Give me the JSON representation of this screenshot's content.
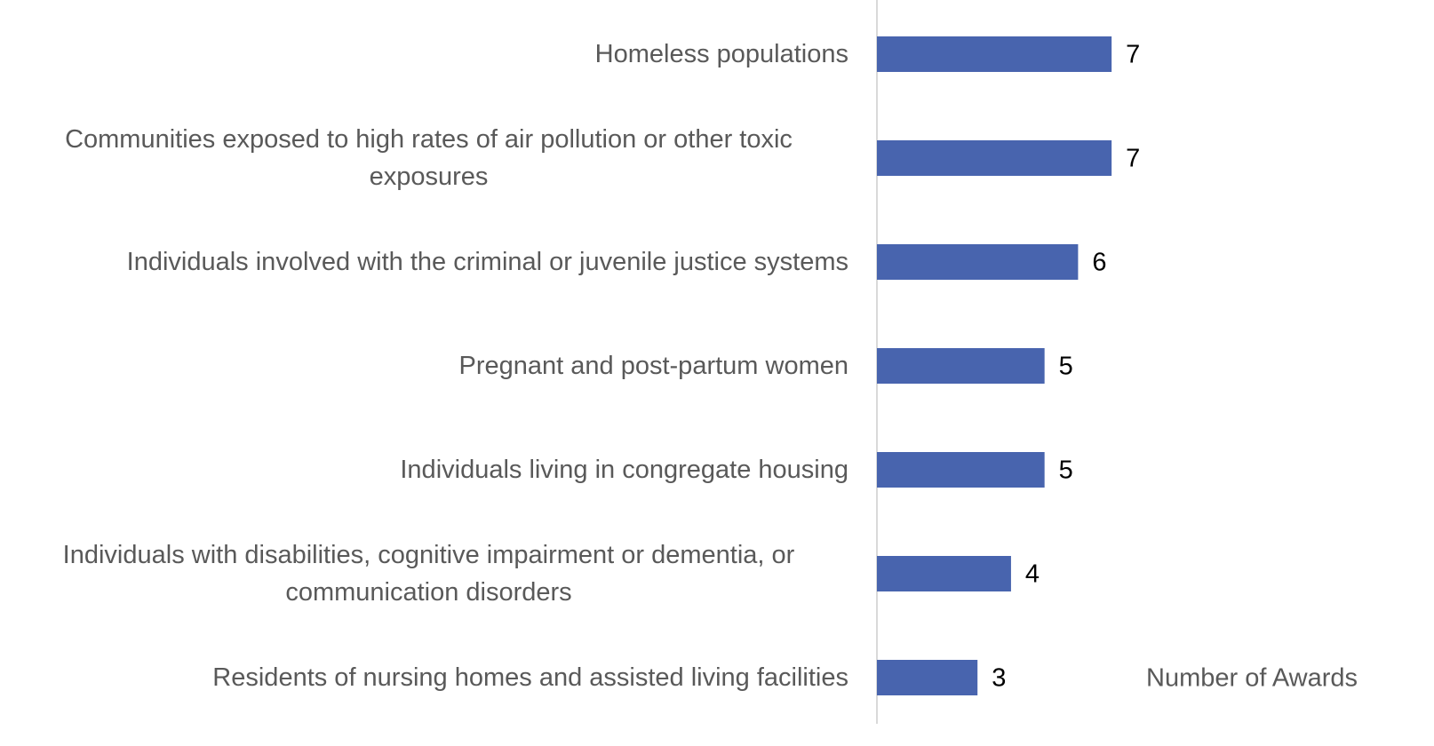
{
  "chart_data": {
    "type": "barh",
    "categories": [
      "Homeless populations",
      "Communities exposed to high rates of air pollution or other toxic exposures",
      "Individuals involved with the criminal or juvenile justice systems",
      "Pregnant and post-partum women",
      "Individuals living in congregate housing",
      "Individuals with disabilities, cognitive impairment or dementia, or communication disorders",
      "Residents of nursing homes and assisted living facilities"
    ],
    "values": [
      7,
      7,
      6,
      5,
      5,
      4,
      3
    ],
    "color": "#4864ae",
    "xlim": [
      0,
      15
    ],
    "xlabel": "Number of Awards"
  }
}
